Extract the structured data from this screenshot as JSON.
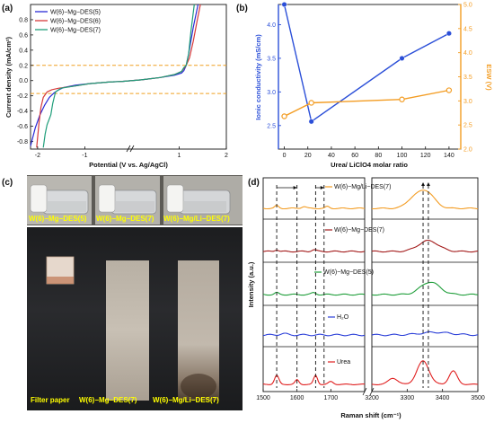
{
  "chart_data": [
    {
      "panel": "(a)",
      "type": "line",
      "xlabel": "Potential (V vs. Ag/AgCl)",
      "ylabel": "Current density (mA/cm²)",
      "xlim": [
        -2.15,
        2.0
      ],
      "ylim": [
        -0.9,
        1.0
      ],
      "x_ticks": [
        "-2",
        "-1",
        "1",
        "2"
      ],
      "y_ticks": [
        "-0.8",
        "-0.6",
        "-0.4",
        "-0.2",
        "0.0",
        "0.2",
        "0.4",
        "0.6",
        "0.8"
      ],
      "reference_lines": [
        0.2,
        -0.17
      ],
      "reference_color": "#f0a020",
      "series": [
        {
          "name": "W(6)−Mg−DES(5)",
          "color": "#2b2bd6",
          "x": [
            -2.15,
            -2.05,
            -1.95,
            -1.85,
            -1.75,
            -1.65,
            -1.55,
            -1.45,
            -1.2,
            -0.9,
            -0.5,
            -0.2,
            0.2,
            0.6,
            0.9,
            1.05,
            1.1,
            1.15,
            1.2,
            1.3,
            1.4
          ],
          "y": [
            -0.86,
            -0.62,
            -0.45,
            -0.32,
            -0.22,
            -0.16,
            -0.12,
            -0.09,
            -0.06,
            -0.04,
            -0.02,
            -0.01,
            0.01,
            0.04,
            0.07,
            0.1,
            0.13,
            0.2,
            0.35,
            0.7,
            1.0
          ]
        },
        {
          "name": "W(6)−Mg−DES(6)",
          "color": "#d63a3a",
          "x": [
            -2.02,
            -1.97,
            -1.93,
            -1.88,
            -1.8,
            -1.7,
            -1.55,
            -1.2,
            -0.9,
            -0.5,
            -0.2,
            0.2,
            0.6,
            0.9,
            1.05,
            1.1,
            1.15,
            1.22,
            1.3,
            1.38,
            1.45
          ],
          "y": [
            -0.88,
            -0.55,
            -0.35,
            -0.22,
            -0.15,
            -0.12,
            -0.1,
            -0.07,
            -0.04,
            -0.02,
            -0.01,
            0.01,
            0.04,
            0.08,
            0.12,
            0.16,
            0.2,
            0.3,
            0.52,
            0.78,
            1.0
          ]
        },
        {
          "name": "W(6)−Mg−DES(7)",
          "color": "#1f9e7a",
          "x": [
            -1.88,
            -1.84,
            -1.8,
            -1.75,
            -1.72,
            -1.68,
            -1.62,
            -1.5,
            -1.2,
            -0.9,
            -0.5,
            -0.2,
            0.2,
            0.6,
            0.9,
            1.05,
            1.1,
            1.15,
            1.2,
            1.25,
            1.32
          ],
          "y": [
            -0.88,
            -0.7,
            -0.58,
            -0.5,
            -0.45,
            -0.3,
            -0.15,
            -0.1,
            -0.07,
            -0.04,
            -0.02,
            -0.01,
            0.01,
            0.04,
            0.08,
            0.12,
            0.17,
            0.2,
            0.35,
            0.65,
            1.0
          ]
        }
      ]
    },
    {
      "panel": "(b)",
      "type": "line",
      "xlabel": "Urea/ LiClO4 molar ratio",
      "ylabel": "Ionic conductivity (mS/cm)",
      "y2label": "ESW (V)",
      "xlim": [
        -5,
        150
      ],
      "ylim": [
        2.15,
        4.3
      ],
      "y2lim": [
        2.0,
        5.0
      ],
      "x_ticks": [
        "0",
        "20",
        "40",
        "60",
        "80",
        "100",
        "120",
        "140"
      ],
      "y_ticks": [
        "2.5",
        "3.0",
        "3.5",
        "4.0"
      ],
      "y2_ticks": [
        "2.0",
        "2.5",
        "3.0",
        "3.5",
        "4.0",
        "4.5",
        "5.0"
      ],
      "series": [
        {
          "name": "Ionic conductivity",
          "axis": "left",
          "color": "#2b4fd8",
          "x": [
            0,
            23,
            100,
            140
          ],
          "y": [
            4.3,
            2.56,
            3.5,
            3.87
          ]
        },
        {
          "name": "ESW",
          "axis": "right",
          "color": "#f39c22",
          "x": [
            0,
            23,
            100,
            140
          ],
          "y": [
            2.68,
            2.96,
            3.03,
            3.22
          ]
        }
      ]
    },
    {
      "panel": "(d)",
      "type": "line",
      "xlabel": "Raman shift (cm⁻¹)",
      "ylabel": "Intensity (a.u.)",
      "xlim_left": [
        1500,
        1800
      ],
      "xlim_right": [
        3200,
        3500
      ],
      "x_ticks": [
        "1500",
        "1600",
        "1700",
        "3200",
        "3300",
        "3400",
        "3500"
      ],
      "series": [
        {
          "name": "W(6)−Mg/Li−DES(7)",
          "color": "#f39c22"
        },
        {
          "name": "W(6)−Mg−DES(7)",
          "color": "#a31a1a"
        },
        {
          "name": "W(6)−Mg−DES(5)",
          "color": "#1f9e3a"
        },
        {
          "name": "H₂O",
          "color": "#2b3fd8"
        },
        {
          "name": "Urea",
          "color": "#e02020"
        }
      ]
    }
  ],
  "panel_c": {
    "label": "(c)",
    "vial_captions": [
      "W(6)−Mg−DES(5)",
      "W(6)−Mg−DES(7)",
      "W(6)−Mg/Li−DES(7)"
    ],
    "bottom_captions": [
      "Filter paper",
      "W(6)−Mg−DES(7)",
      "W(6)−Mg/Li−DES(7)"
    ]
  }
}
